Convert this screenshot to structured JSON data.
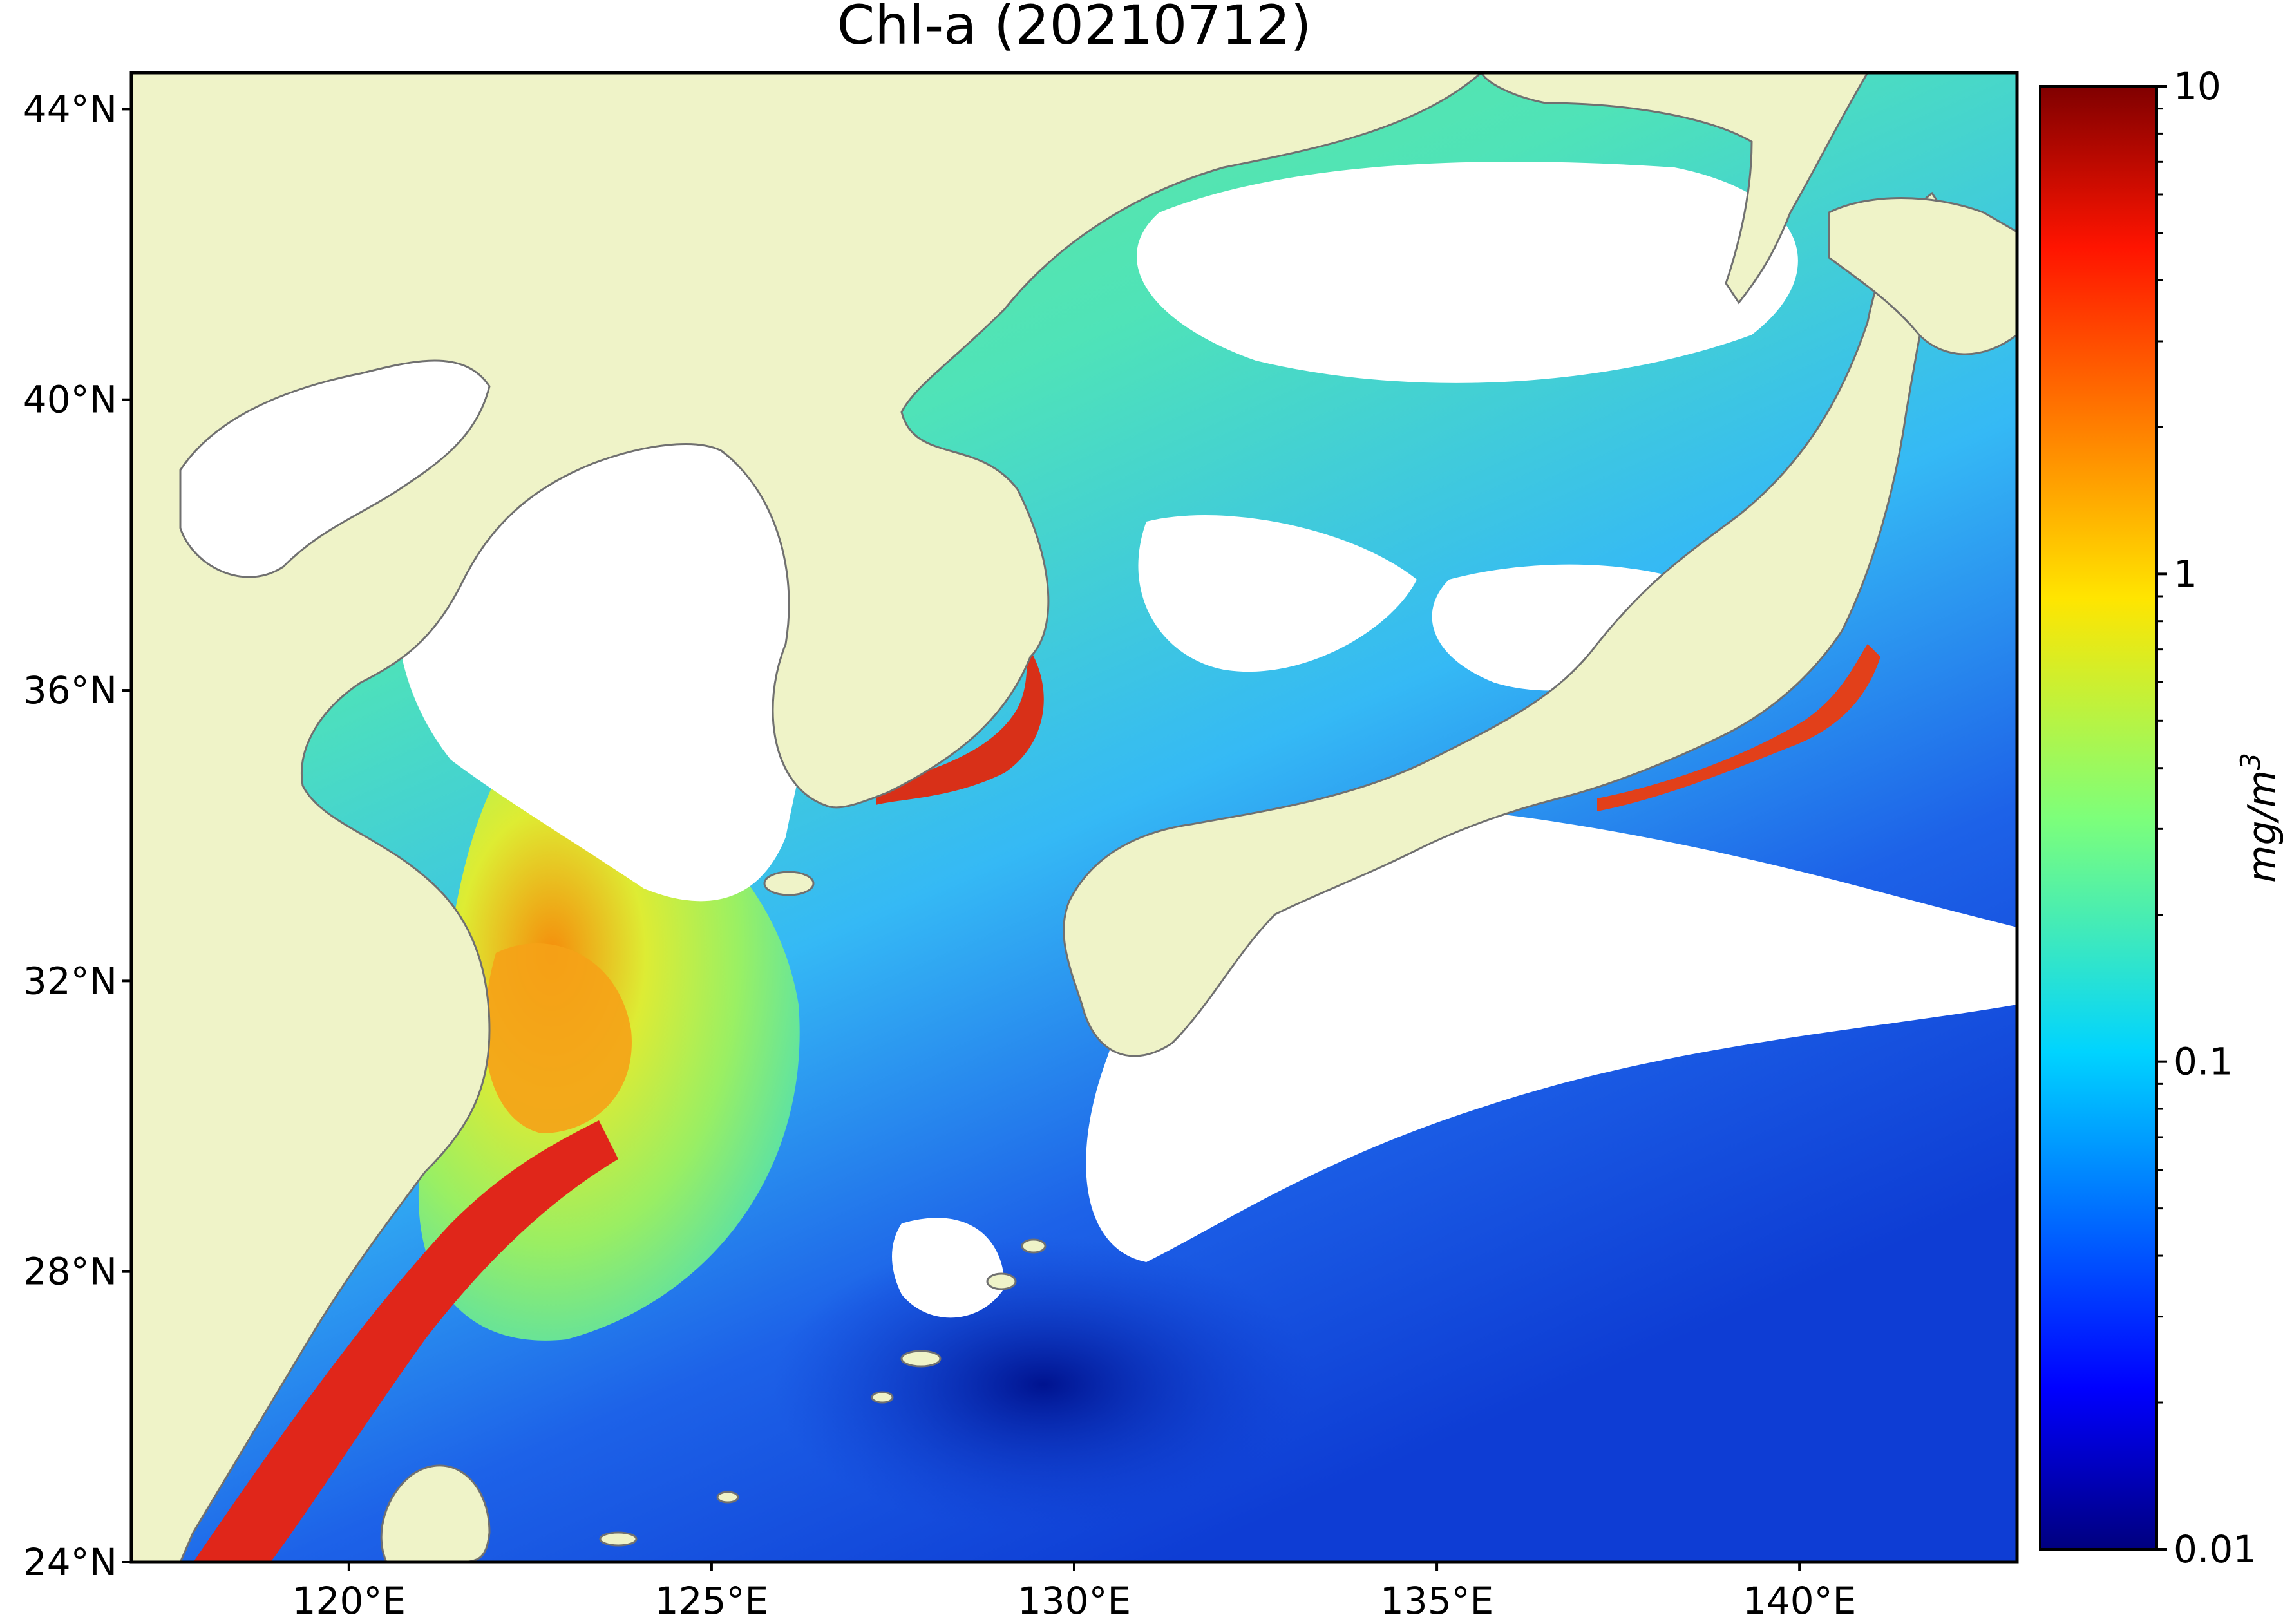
{
  "title": "Chl-a (20210712)",
  "colors": {
    "land": "#EFF3C8",
    "no_data": "#FFFFFF",
    "coastline": "#707070",
    "frame": "#000000"
  },
  "map": {
    "lon_range": [
      117,
      143
    ],
    "lat_range": [
      24,
      44.5
    ],
    "projection": "equirectangular",
    "lat_ticks": [
      {
        "value": 44,
        "label": "44°N"
      },
      {
        "value": 40,
        "label": "40°N"
      },
      {
        "value": 36,
        "label": "36°N"
      },
      {
        "value": 32,
        "label": "32°N"
      },
      {
        "value": 28,
        "label": "28°N"
      },
      {
        "value": 24,
        "label": "24°N"
      }
    ],
    "lon_ticks": [
      {
        "value": 120,
        "label": "120°E"
      },
      {
        "value": 125,
        "label": "125°E"
      },
      {
        "value": 130,
        "label": "130°E"
      },
      {
        "value": 135,
        "label": "135°E"
      },
      {
        "value": 140,
        "label": "140°E"
      }
    ]
  },
  "colorbar": {
    "scale": "log",
    "range": [
      0.01,
      10
    ],
    "colormap": "jet",
    "unit_label": "mg/m",
    "unit_superscript": "3",
    "ticks": [
      {
        "value": 10,
        "label": "10"
      },
      {
        "value": 1,
        "label": "1"
      },
      {
        "value": 0.1,
        "label": "0.1"
      },
      {
        "value": 0.01,
        "label": "0.01"
      }
    ]
  }
}
